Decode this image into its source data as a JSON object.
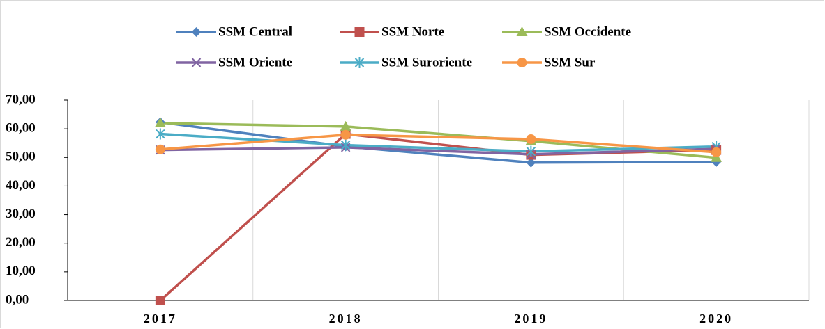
{
  "chart_data": {
    "type": "line",
    "categories": [
      "2017",
      "2018",
      "2019",
      "2020"
    ],
    "series": [
      {
        "name": "SSM Central",
        "color": "#4f81bd",
        "marker": "diamond",
        "values": [
          62.3,
          53.8,
          48.2,
          48.4
        ]
      },
      {
        "name": "SSM Norte",
        "color": "#c0504d",
        "marker": "square",
        "values": [
          0,
          58.2,
          50.9,
          52.6
        ]
      },
      {
        "name": "SSM Occidente",
        "color": "#9bbb59",
        "marker": "triangle",
        "values": [
          62.0,
          60.8,
          55.7,
          49.9
        ]
      },
      {
        "name": "SSM Oriente",
        "color": "#8064a2",
        "marker": "x",
        "values": [
          52.6,
          53.5,
          51.1,
          53.0
        ]
      },
      {
        "name": "SSM Suroriente",
        "color": "#4bacc6",
        "marker": "asterisk",
        "values": [
          58.2,
          54.3,
          52.1,
          53.8
        ]
      },
      {
        "name": "SSM Sur",
        "color": "#f79646",
        "marker": "circle",
        "values": [
          52.8,
          57.9,
          56.4,
          51.8
        ]
      }
    ],
    "ylim": [
      0,
      70
    ],
    "yticks": [
      {
        "value": 0,
        "label": "0,00"
      },
      {
        "value": 10,
        "label": "10,00"
      },
      {
        "value": 20,
        "label": "20,00"
      },
      {
        "value": 30,
        "label": "30,00"
      },
      {
        "value": 40,
        "label": "40,00"
      },
      {
        "value": 50,
        "label": "50,00"
      },
      {
        "value": 60,
        "label": "60,00"
      },
      {
        "value": 70,
        "label": "70,00"
      }
    ],
    "grid": true,
    "legend": "top"
  }
}
